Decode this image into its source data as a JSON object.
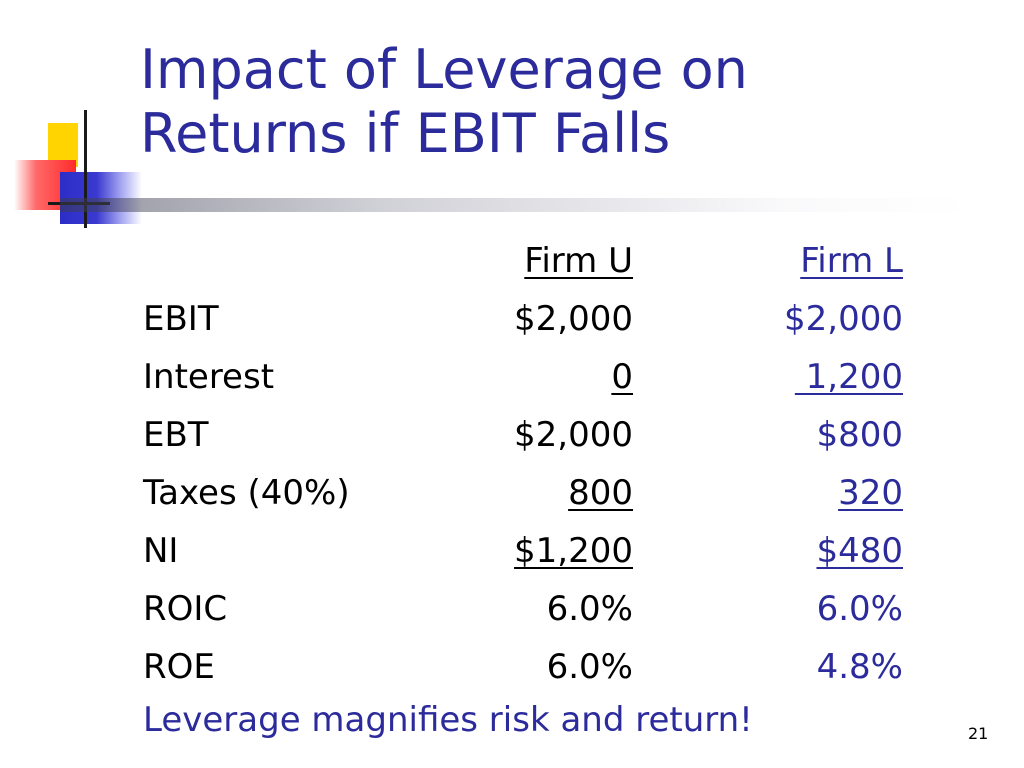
{
  "title": {
    "line1": "Impact of Leverage on",
    "line2": "Returns if EBIT Falls"
  },
  "table": {
    "headers": {
      "label": "",
      "firm_u": "Firm U",
      "firm_l": "Firm L"
    },
    "rows": [
      {
        "label": "EBIT",
        "firm_u": "$2,000",
        "firm_l": "$2,000"
      },
      {
        "label": "Interest",
        "firm_u": "0",
        "firm_l": " 1,200"
      },
      {
        "label": "EBT",
        "firm_u": "$2,000",
        "firm_l": "$800"
      },
      {
        "label": "Taxes (40%)",
        "firm_u": "800",
        "firm_l": "320"
      },
      {
        "label": "NI",
        "firm_u": "$1,200",
        "firm_l": "$480"
      },
      {
        "label": "ROIC",
        "firm_u": "6.0%",
        "firm_l": "6.0%"
      },
      {
        "label": "ROE",
        "firm_u": "6.0%",
        "firm_l": "4.8%"
      }
    ]
  },
  "footer": "Leverage magnifies risk and return!",
  "page_number": "21",
  "colors": {
    "title": "#2b2b9c",
    "firm_l_text": "#2b2b9c",
    "body_text": "#000000",
    "logo_yellow": "#ffd400",
    "logo_red": "#ff2a2a",
    "logo_blue": "#2c2cc8"
  }
}
